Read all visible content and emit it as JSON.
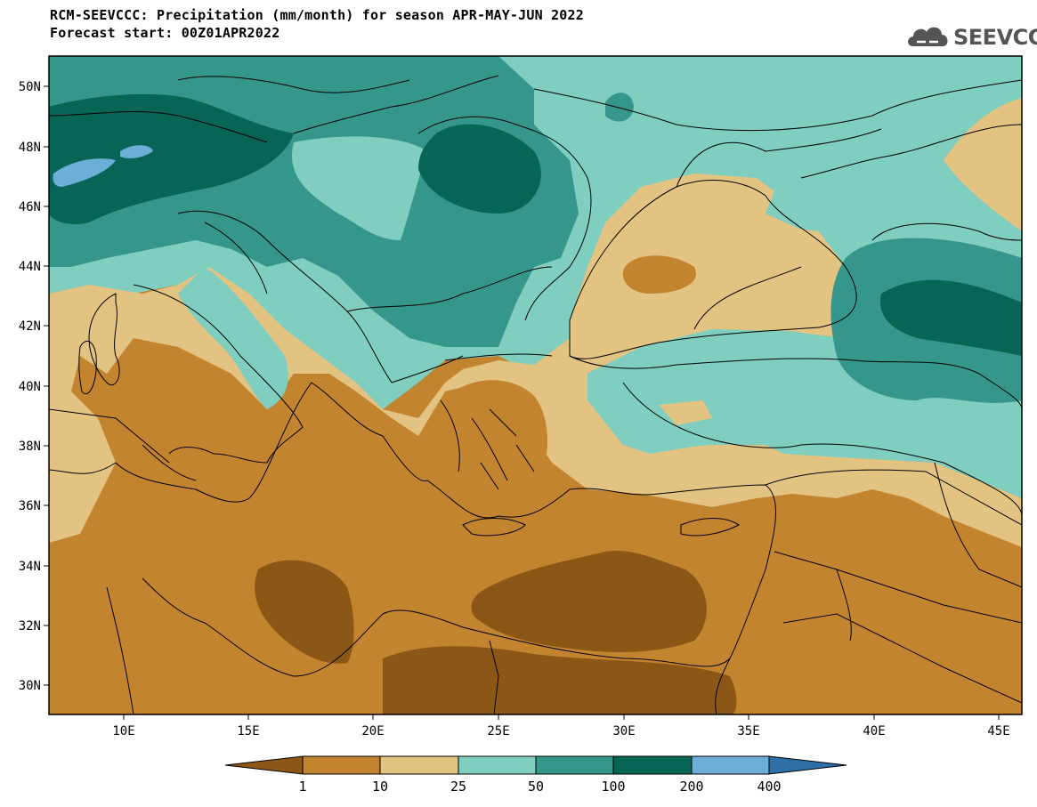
{
  "title_line1": "RCM-SEEVCCC: Precipitation (mm/month) for season APR-MAY-JUN 2022",
  "title_line2": "Forecast start: 00Z01APR2022",
  "logo_text": "SEEVCCC",
  "logo_icon": "cloud-icon",
  "lat_ticks": [
    "50N",
    "48N",
    "46N",
    "44N",
    "42N",
    "40N",
    "38N",
    "36N",
    "34N",
    "32N",
    "30N"
  ],
  "lon_ticks": [
    "10E",
    "15E",
    "20E",
    "25E",
    "30E",
    "35E",
    "40E",
    "45E"
  ],
  "colorbar": {
    "boundaries": [
      "1",
      "10",
      "25",
      "50",
      "100",
      "200",
      "400"
    ],
    "colors": [
      "#8B5716",
      "#C2842F",
      "#E3C382",
      "#7FCEC0",
      "#35968B",
      "#066555",
      "#6BAED6",
      "#2F6FA8"
    ]
  }
}
